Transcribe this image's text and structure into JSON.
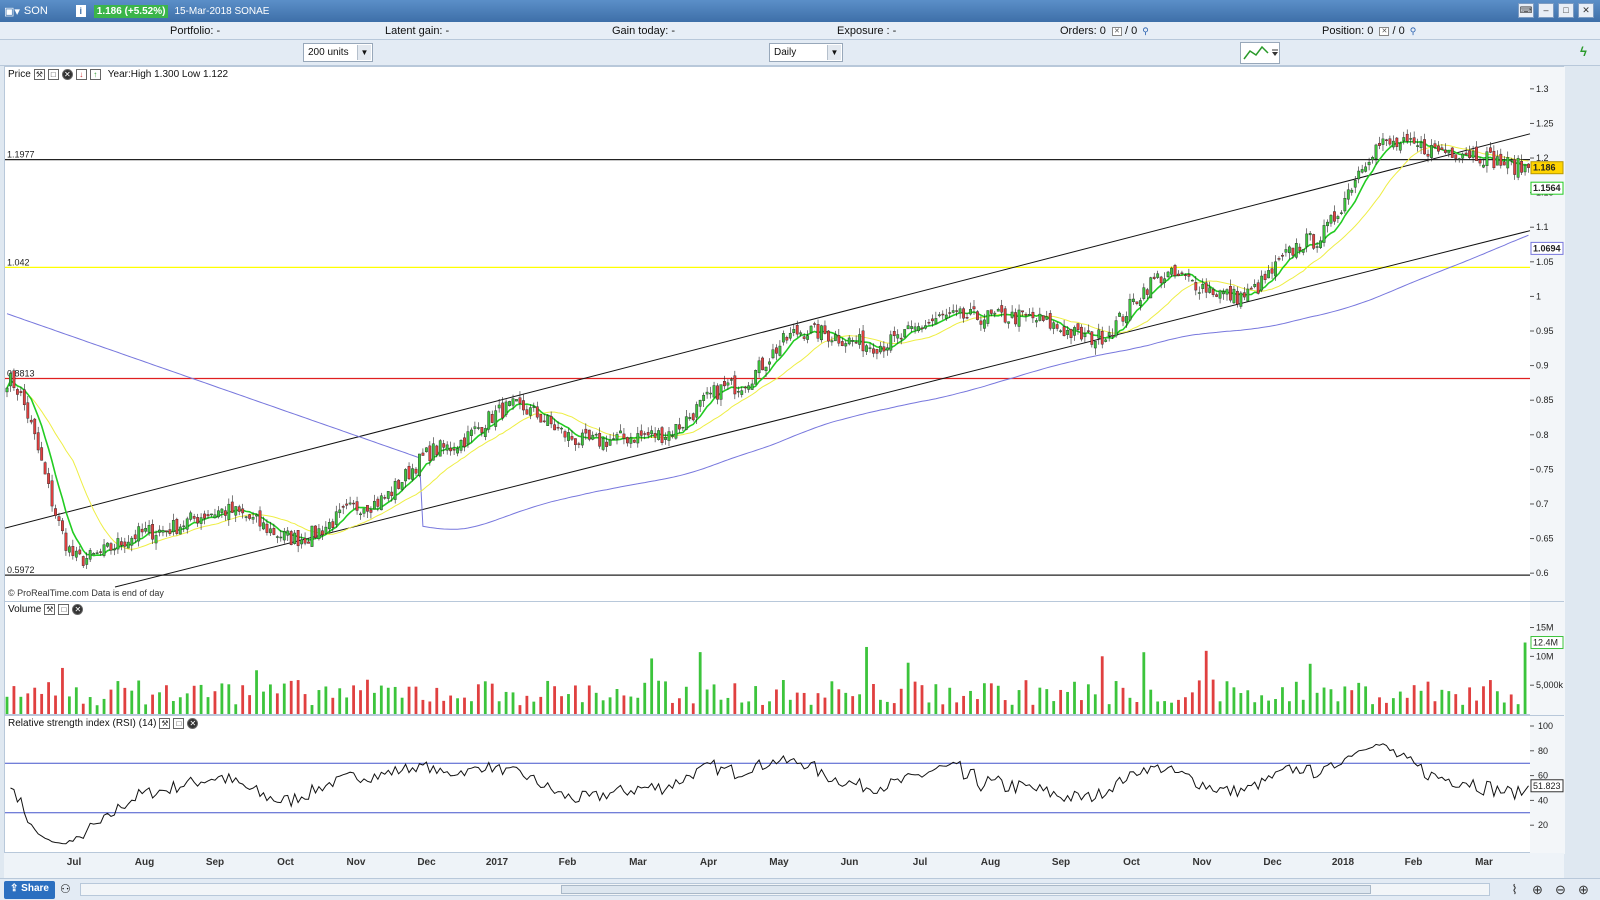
{
  "titlebar": {
    "ticker": "SON",
    "price_change": "1.186 (+5.52%)",
    "date_name": "15-Mar-2018 SONAE"
  },
  "status": {
    "portfolio": "Portfolio: -",
    "latent_gain": "Latent gain: -",
    "gain_today": "Gain today: -",
    "exposure": "Exposure : -",
    "orders": "Orders: 0",
    "orders_b": "/ 0",
    "position": "Position: 0",
    "position_b": "/ 0"
  },
  "toolbar": {
    "units": "200 units",
    "period": "Daily"
  },
  "price_panel": {
    "title": "Price",
    "year_info": "Year:High 1.300 Low 1.122",
    "copyright": "© ProRealTime.com  Data is end of day",
    "hlines": [
      {
        "label": "1.1977",
        "value": 1.1977,
        "color": "#222222"
      },
      {
        "label": "1.042",
        "value": 1.042,
        "color": "#ffff00"
      },
      {
        "label": "0.8813",
        "value": 0.8813,
        "color": "#e02020"
      },
      {
        "label": "0.5972",
        "value": 0.5972,
        "color": "#222222"
      }
    ],
    "yticks": [
      "1.3",
      "1.25",
      "1.2",
      "1.15",
      "1.1",
      "1.05",
      "1",
      "0.95",
      "0.9",
      "0.85",
      "0.8",
      "0.75",
      "0.7",
      "0.65",
      "0.6"
    ],
    "last_price": "1.186",
    "ma_short_value": "1.1564",
    "ma_long_value": "1.0694"
  },
  "volume_panel": {
    "title": "Volume",
    "yticks": [
      "15M",
      "10M",
      "5,000k"
    ],
    "last_volume": "12.4M"
  },
  "rsi_panel": {
    "title": "Relative strength index (RSI) (14)",
    "yticks": [
      "100",
      "80",
      "60",
      "40",
      "20"
    ],
    "last_value": "51.823"
  },
  "x_axis": {
    "months": [
      "Jul",
      "Aug",
      "Sep",
      "Oct",
      "Nov",
      "Dec",
      "2017",
      "Feb",
      "Mar",
      "Apr",
      "May",
      "Jun",
      "Jul",
      "Aug",
      "Sep",
      "Oct",
      "Nov",
      "Dec",
      "2018",
      "Feb",
      "Mar"
    ]
  },
  "bottombar": {
    "share": "Share"
  },
  "colors": {
    "up": "#3cc43c",
    "down": "#e04040",
    "ma_fast": "#22cc22",
    "ma_mid": "#eeee44",
    "ma_slow": "#7777dd",
    "channel": "#111111"
  },
  "chart_data": {
    "type": "candlestick",
    "price_keypoints": [
      {
        "month": "2016-06",
        "close": 0.88
      },
      {
        "month": "2016-07",
        "close": 0.62
      },
      {
        "month": "2016-08",
        "close": 0.66
      },
      {
        "month": "2016-09",
        "close": 0.69
      },
      {
        "month": "2016-10",
        "close": 0.65
      },
      {
        "month": "2016-11",
        "close": 0.7
      },
      {
        "month": "2016-12",
        "close": 0.78
      },
      {
        "month": "2017-01",
        "close": 0.84
      },
      {
        "month": "2017-02",
        "close": 0.79
      },
      {
        "month": "2017-03",
        "close": 0.8
      },
      {
        "month": "2017-04",
        "close": 0.87
      },
      {
        "month": "2017-05",
        "close": 0.95
      },
      {
        "month": "2017-06",
        "close": 0.93
      },
      {
        "month": "2017-07",
        "close": 0.97
      },
      {
        "month": "2017-08",
        "close": 0.97
      },
      {
        "month": "2017-09",
        "close": 0.94
      },
      {
        "month": "2017-10",
        "close": 1.03
      },
      {
        "month": "2017-11",
        "close": 1.0
      },
      {
        "month": "2017-12",
        "close": 1.08
      },
      {
        "month": "2018-01",
        "close": 1.22
      },
      {
        "month": "2018-02",
        "close": 1.21
      },
      {
        "month": "2018-03",
        "close": 1.186
      }
    ],
    "ylim": [
      0.58,
      1.32
    ],
    "rsi_ylim": [
      0,
      100
    ],
    "rsi_bands": [
      70,
      30
    ]
  }
}
